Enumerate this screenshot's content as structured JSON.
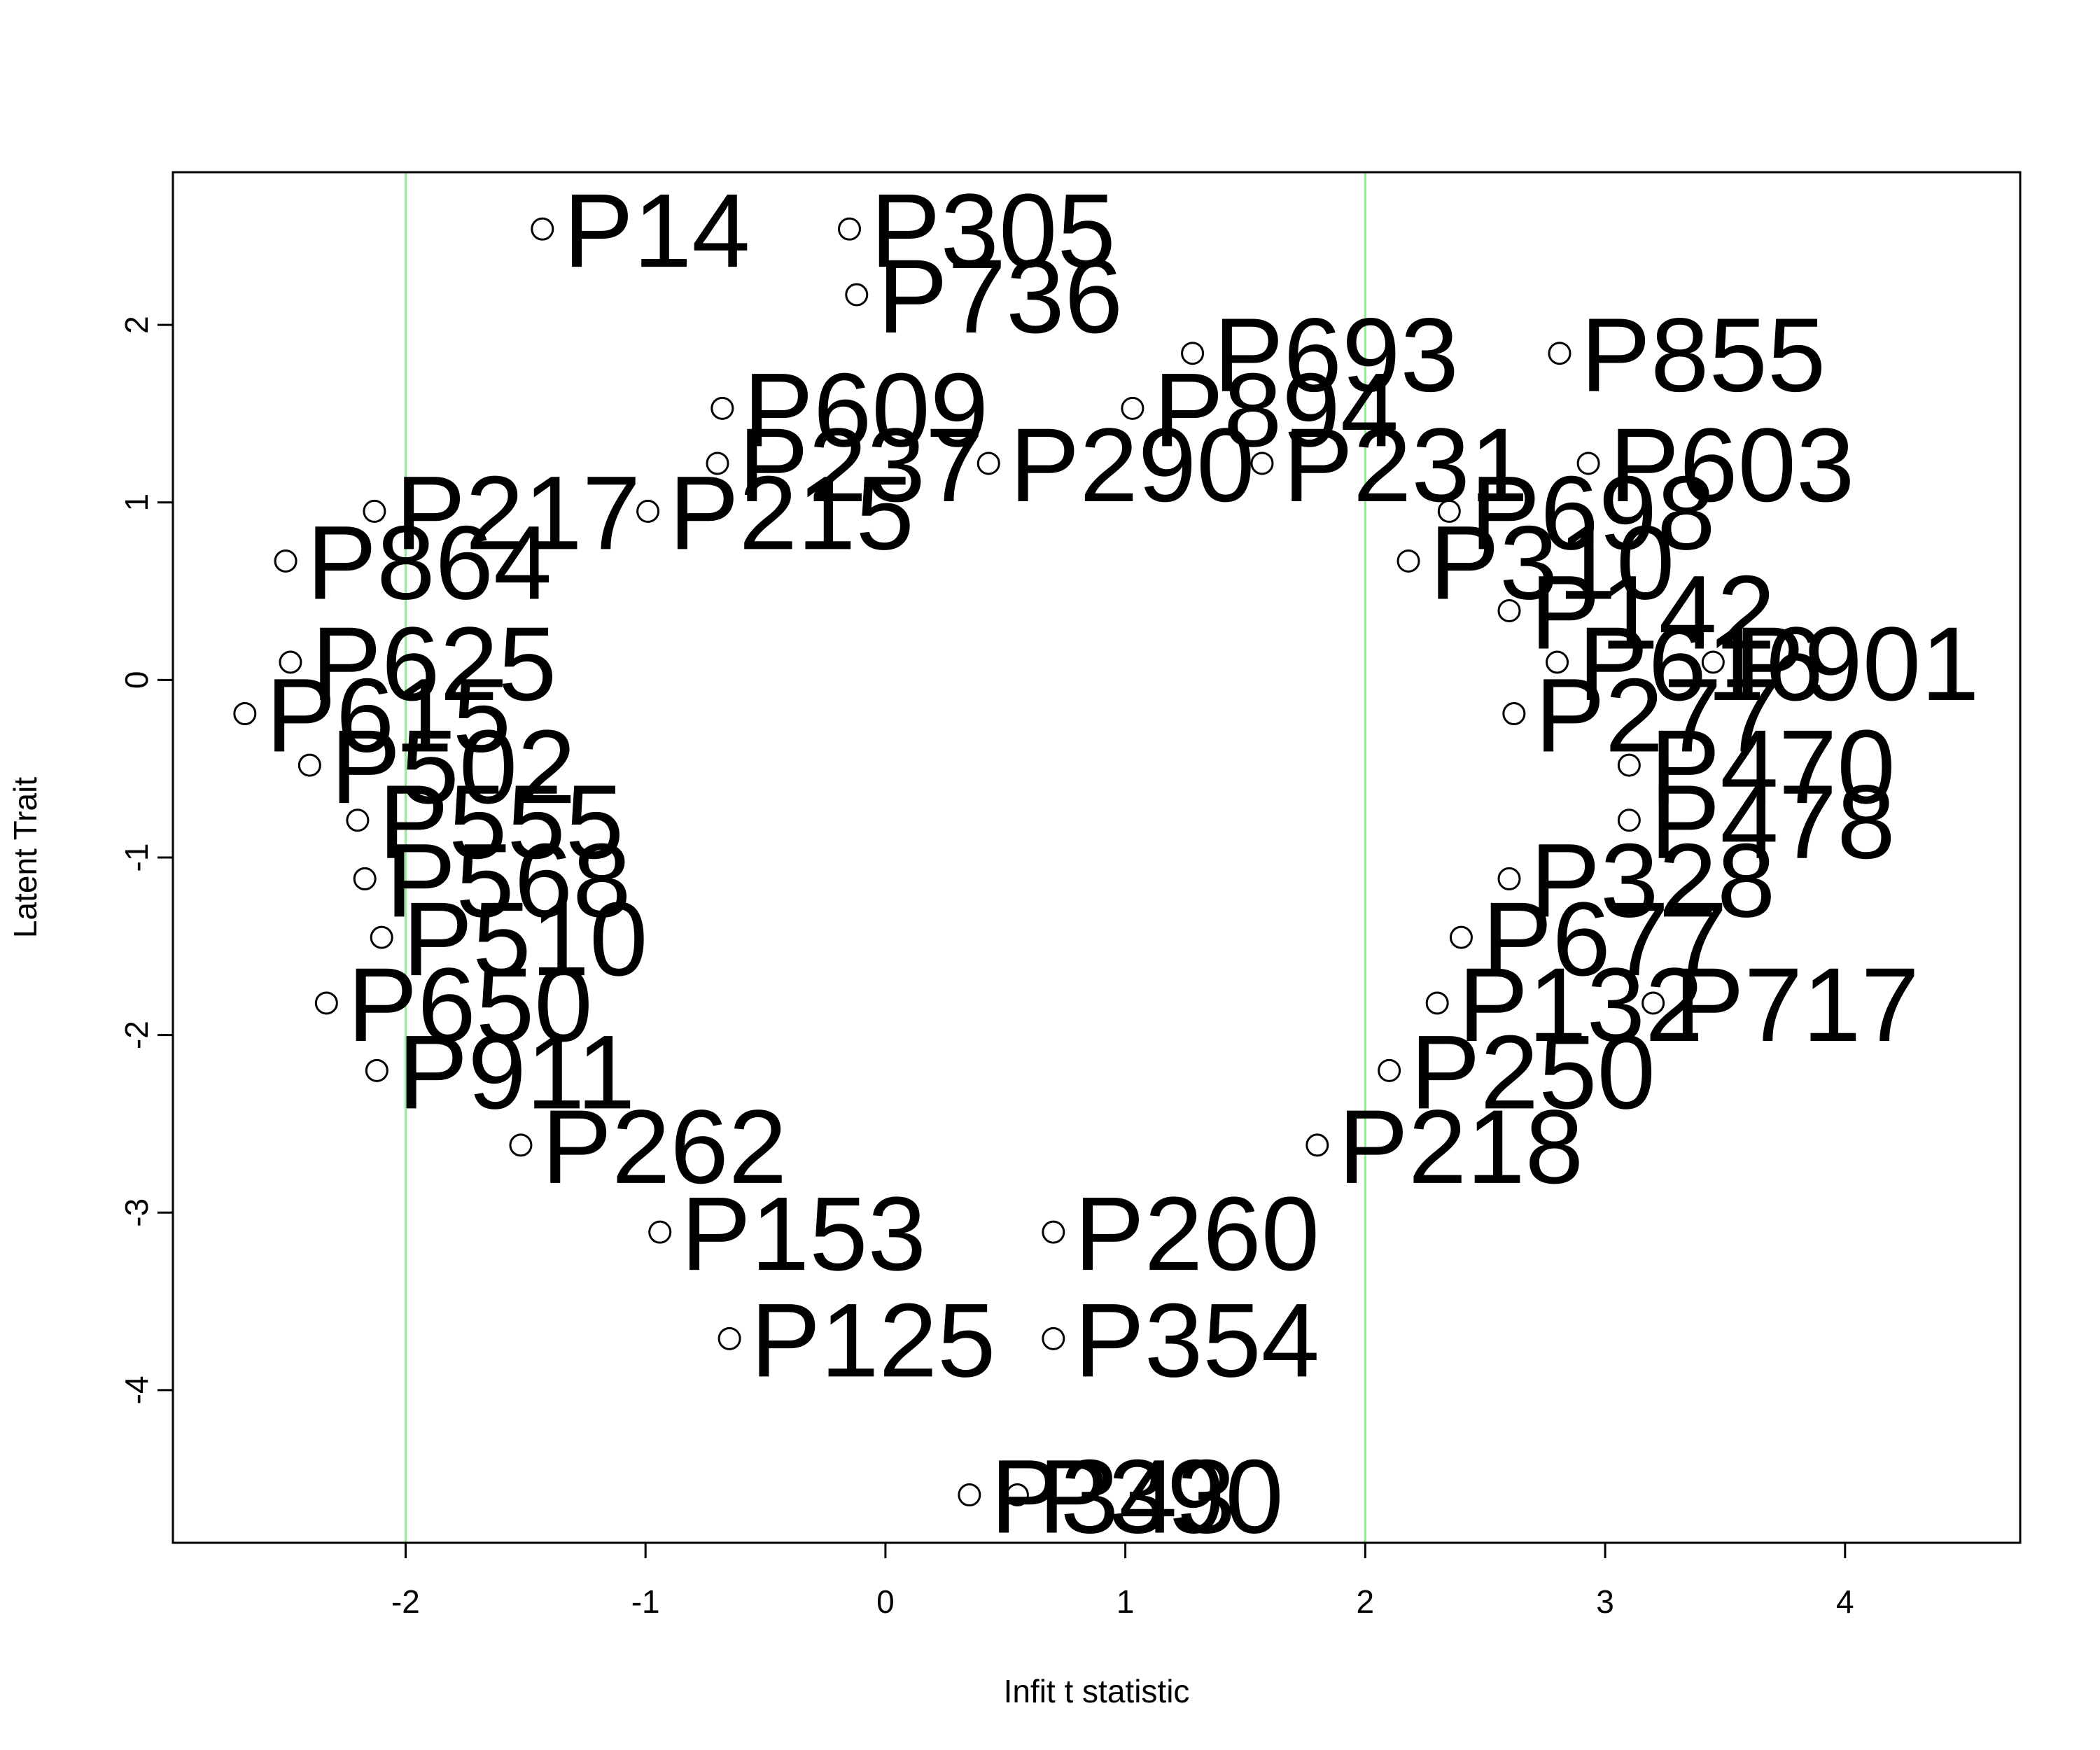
{
  "chart_data": {
    "type": "scatter",
    "title": "",
    "xlabel": "Infit t statistic",
    "ylabel": "Latent Trait",
    "xlim": [
      -2.97,
      4.73
    ],
    "ylim": [
      -4.86,
      2.86
    ],
    "xticks": [
      "-2",
      "-1",
      "0",
      "1",
      "2",
      "3",
      "4"
    ],
    "yticks": [
      "-4",
      "-3",
      "-2",
      "-1",
      "0",
      "1",
      "2"
    ],
    "reference_lines": {
      "x": [
        -2,
        2
      ],
      "color": "#90ee90"
    },
    "grid": false,
    "legend": "none",
    "marker": "open-circle",
    "points": [
      {
        "label": "P14",
        "x": -1.43,
        "y": 2.54
      },
      {
        "label": "P305",
        "x": -0.15,
        "y": 2.54
      },
      {
        "label": "P736",
        "x": -0.12,
        "y": 2.17
      },
      {
        "label": "P693",
        "x": 1.28,
        "y": 1.84
      },
      {
        "label": "P855",
        "x": 2.81,
        "y": 1.84
      },
      {
        "label": "P609",
        "x": -0.68,
        "y": 1.53
      },
      {
        "label": "P894",
        "x": 1.03,
        "y": 1.53
      },
      {
        "label": "P603",
        "x": 2.93,
        "y": 1.22
      },
      {
        "label": "P231",
        "x": 1.57,
        "y": 1.22
      },
      {
        "label": "P290",
        "x": 0.43,
        "y": 1.22
      },
      {
        "label": "P237",
        "x": -0.7,
        "y": 1.22
      },
      {
        "label": "P217",
        "x": -2.13,
        "y": 0.95
      },
      {
        "label": "P215",
        "x": -0.99,
        "y": 0.95
      },
      {
        "label": "P698",
        "x": 2.35,
        "y": 0.95
      },
      {
        "label": "P864",
        "x": -2.5,
        "y": 0.67
      },
      {
        "label": "P310",
        "x": 2.18,
        "y": 0.67
      },
      {
        "label": "P142",
        "x": 2.6,
        "y": 0.39
      },
      {
        "label": "P901",
        "x": 3.45,
        "y": 0.1
      },
      {
        "label": "P616",
        "x": 2.8,
        "y": 0.1
      },
      {
        "label": "P625",
        "x": -2.48,
        "y": 0.1
      },
      {
        "label": "P615",
        "x": -2.67,
        "y": -0.19
      },
      {
        "label": "P277",
        "x": 2.62,
        "y": -0.19
      },
      {
        "label": "P470",
        "x": 3.1,
        "y": -0.48
      },
      {
        "label": "P502",
        "x": -2.4,
        "y": -0.48
      },
      {
        "label": "P478",
        "x": 3.1,
        "y": -0.79
      },
      {
        "label": "P555",
        "x": -2.2,
        "y": -0.79
      },
      {
        "label": "P568",
        "x": -2.17,
        "y": -1.12
      },
      {
        "label": "P328",
        "x": 2.6,
        "y": -1.12
      },
      {
        "label": "P677",
        "x": 2.4,
        "y": -1.45
      },
      {
        "label": "P510",
        "x": -2.1,
        "y": -1.45
      },
      {
        "label": "P717",
        "x": 3.2,
        "y": -1.82
      },
      {
        "label": "P650",
        "x": -2.33,
        "y": -1.82
      },
      {
        "label": "P132",
        "x": 2.3,
        "y": -1.82
      },
      {
        "label": "P911",
        "x": -2.12,
        "y": -2.2
      },
      {
        "label": "P250",
        "x": 2.1,
        "y": -2.2
      },
      {
        "label": "P218",
        "x": 1.8,
        "y": -2.62
      },
      {
        "label": "P262",
        "x": -1.52,
        "y": -2.62
      },
      {
        "label": "P153",
        "x": -0.94,
        "y": -3.11
      },
      {
        "label": "P260",
        "x": 0.7,
        "y": -3.11
      },
      {
        "label": "P125",
        "x": -0.65,
        "y": -3.71
      },
      {
        "label": "P354",
        "x": 0.7,
        "y": -3.71
      },
      {
        "label": "P343",
        "x": 0.35,
        "y": -4.59
      },
      {
        "label": "P390",
        "x": 0.55,
        "y": -4.59
      }
    ]
  }
}
